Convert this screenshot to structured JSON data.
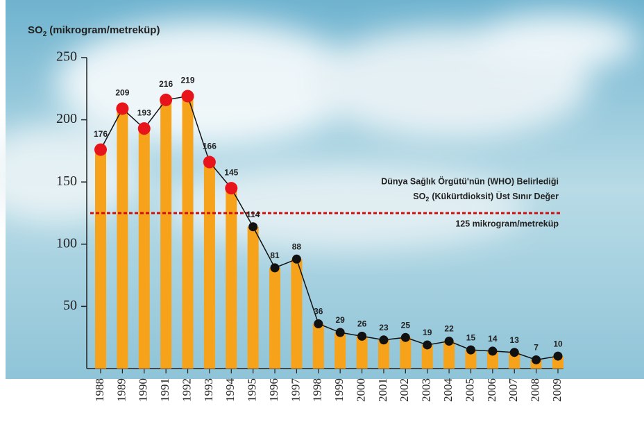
{
  "chart_data": {
    "type": "bar-line",
    "y_label": {
      "base": "SO",
      "sub": "2",
      "rest": "(mikrogram/metreküp)"
    },
    "categories": [
      "1988",
      "1989",
      "1990",
      "1991",
      "1992",
      "1993",
      "1994",
      "1995",
      "1996",
      "1997",
      "1998",
      "1999",
      "2000",
      "2001",
      "2002",
      "2003",
      "2004",
      "2005",
      "2006",
      "2007",
      "2008",
      "2009"
    ],
    "values": [
      176,
      209,
      193,
      216,
      219,
      166,
      145,
      114,
      81,
      88,
      36,
      29,
      26,
      23,
      25,
      19,
      22,
      15,
      14,
      13,
      7,
      10
    ],
    "bar_color": "#f7a21b",
    "line_color": "#111111",
    "marker_colors": {
      "above": "#e8141c",
      "below": "#111111"
    },
    "ylim": [
      0,
      250
    ],
    "yticks": [
      50,
      100,
      150,
      200,
      250
    ],
    "threshold": {
      "value": 125,
      "color": "#cc1010",
      "label_line1": "Dünya Sağlık Örgütü'nün (WHO) Belirlediği",
      "label_line2": {
        "base": "SO",
        "sub": "2",
        "rest": "(Kükürtdioksit) Üst Sınır Değer"
      },
      "label_line3": "125 mikrogram/metreküp"
    }
  }
}
